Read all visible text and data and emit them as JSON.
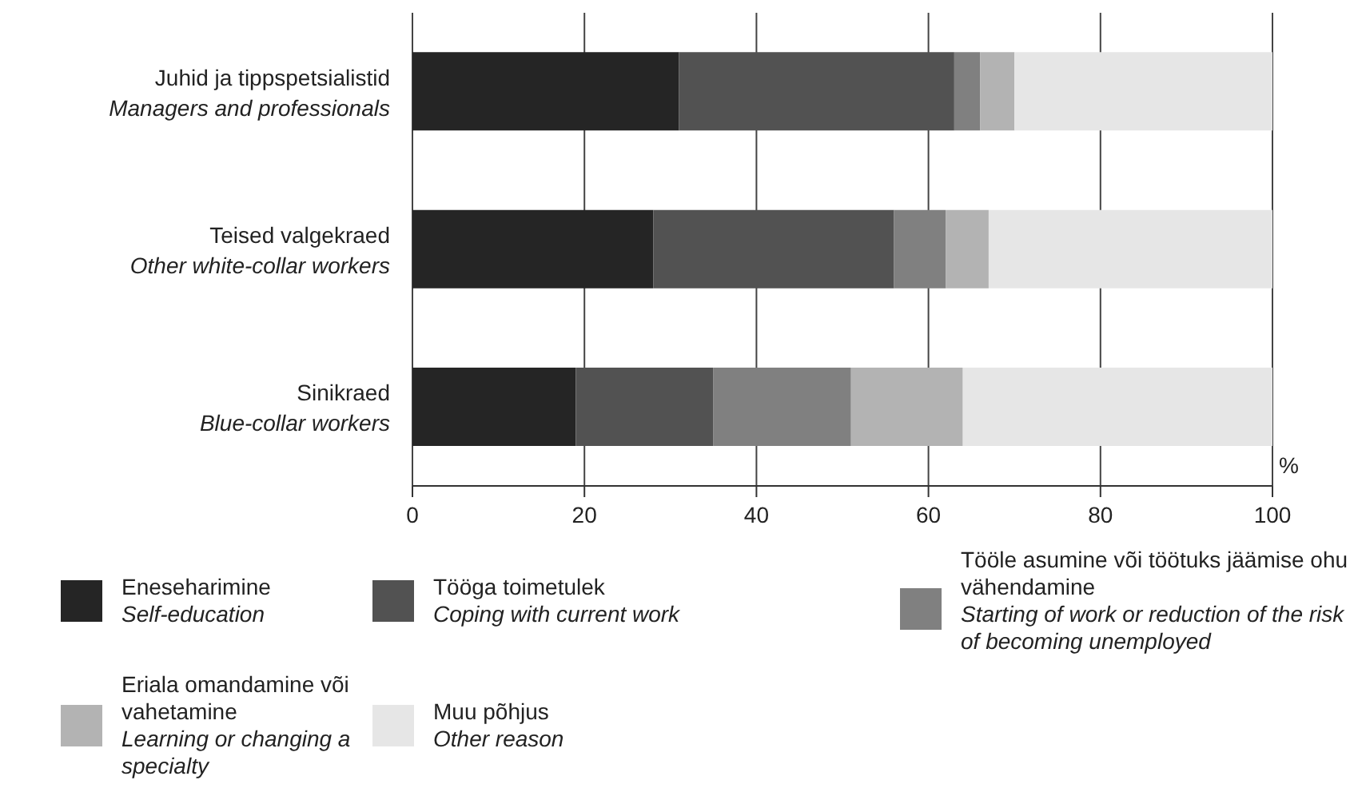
{
  "chart_data": {
    "type": "bar",
    "orientation": "horizontal",
    "stacked": true,
    "xlabel": "%",
    "categories": [
      "Juhid ja tippspetsialistid\nManagers and professionals",
      "Teised valgekraed\nOther white-collar workers",
      "Sinikraed\nBlue-collar workers"
    ],
    "series": [
      {
        "name": "Eneseharimine\nSelf-education",
        "color": "#252525",
        "values": [
          31,
          28,
          19
        ]
      },
      {
        "name": "Tööga toimetulek\nCoping with current work",
        "color": "#525252",
        "values": [
          32,
          28,
          16
        ]
      },
      {
        "name": "Tööle asumine või töötuks jäämise ohu vähendamine\nStarting of work or reduction of the risk of becoming unemployed",
        "color": "#808080",
        "values": [
          3,
          6,
          16
        ]
      },
      {
        "name": "Eriala omandamine või vahetamine\nLearning or changing a specialty",
        "color": "#b3b3b3",
        "values": [
          4,
          5,
          13
        ]
      },
      {
        "name": "Muu põhjus\nOther reason",
        "color": "#e6e6e6",
        "values": [
          30,
          33,
          36
        ]
      }
    ],
    "xlim": [
      0,
      100
    ],
    "xticks": [
      0,
      20,
      40,
      60,
      80,
      100
    ],
    "grid": "x",
    "legend": "bottom"
  }
}
